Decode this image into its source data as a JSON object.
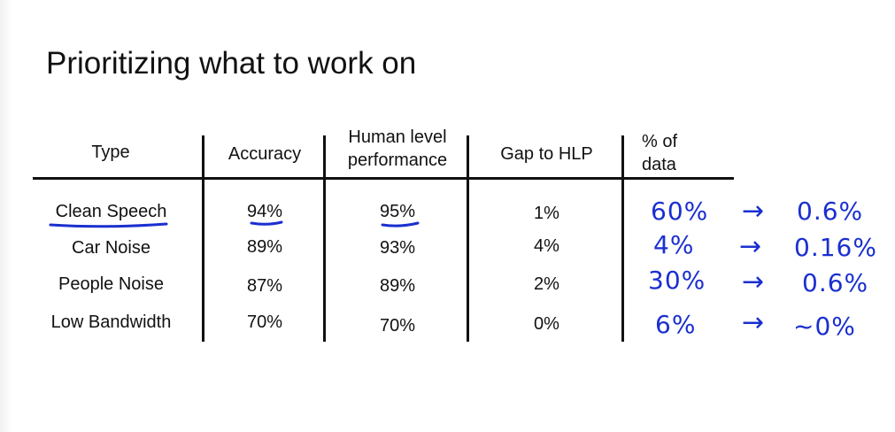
{
  "title": "Prioritizing what to work on",
  "table": {
    "headers": {
      "type": "Type",
      "accuracy": "Accuracy",
      "hlp_line1": "Human level",
      "hlp_line2": "performance",
      "gap": "Gap to HLP",
      "data_line1": "% of",
      "data_line2": "data"
    },
    "rows": [
      {
        "type": "Clean Speech",
        "accuracy": "94%",
        "hlp": "95%",
        "gap": "1%",
        "data": "60%",
        "result": "0.6%"
      },
      {
        "type": "Car Noise",
        "accuracy": "89%",
        "hlp": "93%",
        "gap": "4%",
        "data": "4%",
        "result": "0.16%"
      },
      {
        "type": "People Noise",
        "accuracy": "87%",
        "hlp": "89%",
        "gap": "2%",
        "data": "30%",
        "result": "0.6%"
      },
      {
        "type": "Low Bandwidth",
        "accuracy": "70%",
        "hlp": "70%",
        "gap": "0%",
        "data": "6%",
        "result": "~0%"
      }
    ]
  },
  "annotations": {
    "arrow": "→",
    "ink_color": "#1a2fd0"
  }
}
